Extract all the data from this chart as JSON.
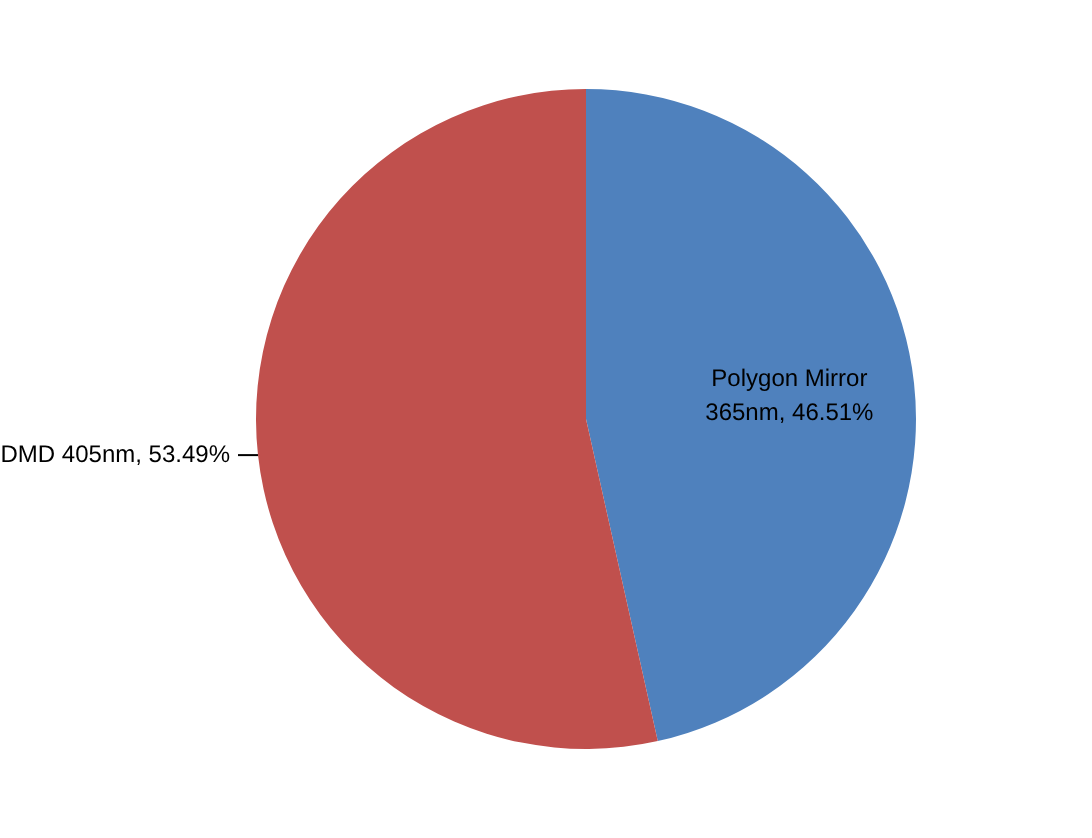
{
  "chart_data": {
    "type": "pie",
    "categories": [
      "Polygon Mirror 365nm",
      "DMD 405nm"
    ],
    "values": [
      46.51,
      53.49
    ],
    "colors": [
      "#4f81bd",
      "#c0504d"
    ],
    "value_labels": [
      "46.51%",
      "53.49%"
    ],
    "legend": false
  }
}
